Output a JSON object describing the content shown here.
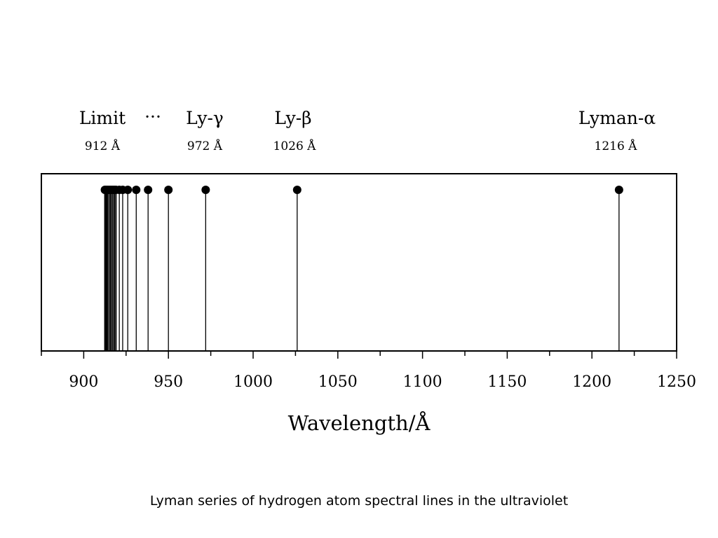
{
  "chart_data": {
    "type": "line",
    "xlabel": "Wavelength/Å",
    "xlim": [
      875,
      1250
    ],
    "ylim": [
      0,
      1
    ],
    "x_ticks": [
      900,
      950,
      1000,
      1050,
      1100,
      1150,
      1200,
      1250
    ],
    "grid": false,
    "lines": [
      {
        "wavelength": 1216
      },
      {
        "wavelength": 1026
      },
      {
        "wavelength": 972
      },
      {
        "wavelength": 950
      },
      {
        "wavelength": 938
      },
      {
        "wavelength": 931
      },
      {
        "wavelength": 926
      },
      {
        "wavelength": 923
      },
      {
        "wavelength": 921
      },
      {
        "wavelength": 919
      },
      {
        "wavelength": 918
      },
      {
        "wavelength": 917
      },
      {
        "wavelength": 916
      },
      {
        "wavelength": 915
      },
      {
        "wavelength": 914
      },
      {
        "wavelength": 913.5
      },
      {
        "wavelength": 913
      },
      {
        "wavelength": 912.5
      }
    ],
    "annotations": [
      {
        "name": "Limit",
        "wavelength_label": "912 Å"
      },
      {
        "name": "···",
        "wavelength_label": ""
      },
      {
        "name": "Ly-γ",
        "wavelength_label": "972 Å"
      },
      {
        "name": "Ly-β",
        "wavelength_label": "1026 Å"
      },
      {
        "name": "Lyman-α",
        "wavelength_label": "1216 Å"
      }
    ]
  },
  "caption": "Lyman series of hydrogen atom spectral lines in the ultraviolet"
}
